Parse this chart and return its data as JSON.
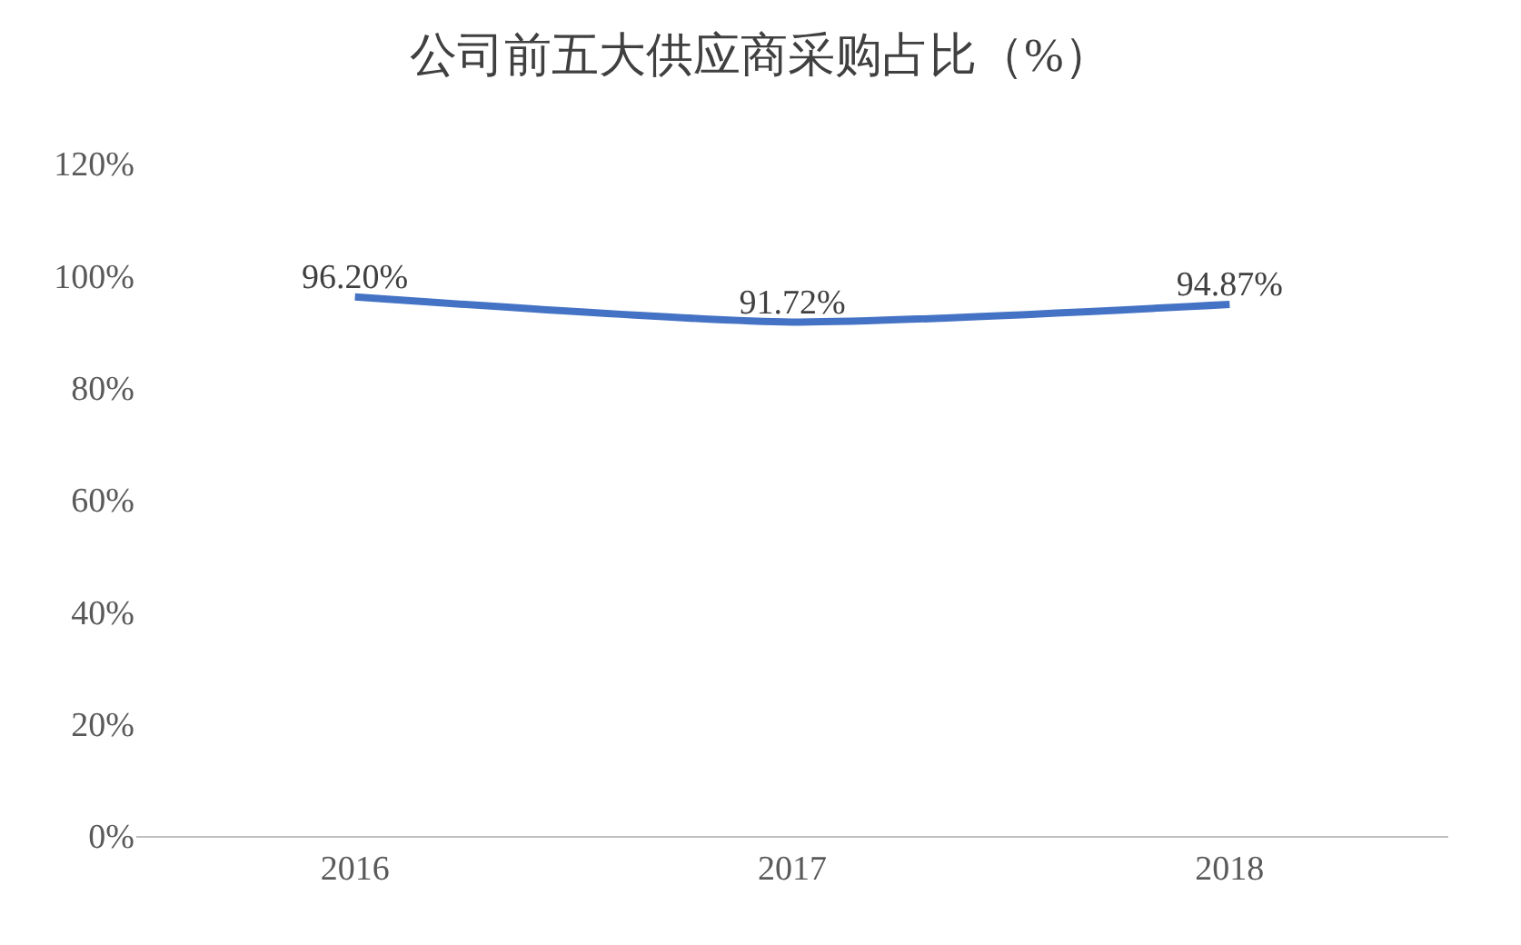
{
  "chart_data": {
    "type": "line",
    "title": "公司前五大供应商采购占比（%）",
    "categories": [
      "2016",
      "2017",
      "2018"
    ],
    "series": [
      {
        "color": "#4472c4",
        "values": [
          96.2,
          91.72,
          94.87
        ],
        "value_labels": [
          "96.20%",
          "91.72%",
          "94.87%"
        ]
      }
    ],
    "ylim": [
      0,
      120
    ],
    "yticks": [
      {
        "value": 0,
        "label": "0%"
      },
      {
        "value": 20,
        "label": "20%"
      },
      {
        "value": 40,
        "label": "40%"
      },
      {
        "value": 60,
        "label": "60%"
      },
      {
        "value": 80,
        "label": "80%"
      },
      {
        "value": 100,
        "label": "100%"
      },
      {
        "value": 120,
        "label": "120%"
      }
    ]
  }
}
